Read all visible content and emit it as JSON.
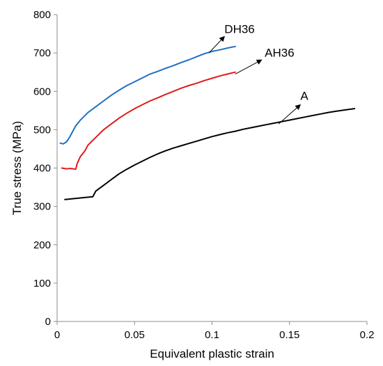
{
  "chart_data": {
    "type": "line",
    "title": "",
    "xlabel": "Equivalent plastic strain",
    "ylabel": "True stress (MPa)",
    "xlim": [
      0,
      0.2
    ],
    "ylim": [
      0,
      800
    ],
    "x_ticks": [
      0,
      0.05,
      0.1,
      0.15,
      0.2
    ],
    "x_tick_labels": [
      "0",
      "0.05",
      "0.1",
      "0.15",
      "0.2"
    ],
    "y_ticks": [
      0,
      100,
      200,
      300,
      400,
      500,
      600,
      700,
      800
    ],
    "y_tick_labels": [
      "0",
      "100",
      "200",
      "300",
      "400",
      "500",
      "600",
      "700",
      "800"
    ],
    "grid": false,
    "legend": "none",
    "series": [
      {
        "name": "DH36",
        "color": "#1f6fbf",
        "points": [
          [
            0.002,
            465
          ],
          [
            0.004,
            463
          ],
          [
            0.006,
            468
          ],
          [
            0.008,
            480
          ],
          [
            0.01,
            495
          ],
          [
            0.012,
            510
          ],
          [
            0.015,
            525
          ],
          [
            0.02,
            545
          ],
          [
            0.025,
            560
          ],
          [
            0.03,
            575
          ],
          [
            0.035,
            590
          ],
          [
            0.04,
            603
          ],
          [
            0.045,
            615
          ],
          [
            0.05,
            625
          ],
          [
            0.055,
            635
          ],
          [
            0.06,
            645
          ],
          [
            0.065,
            652
          ],
          [
            0.07,
            660
          ],
          [
            0.075,
            667
          ],
          [
            0.08,
            675
          ],
          [
            0.085,
            682
          ],
          [
            0.09,
            690
          ],
          [
            0.095,
            698
          ],
          [
            0.1,
            704
          ],
          [
            0.105,
            708
          ],
          [
            0.11,
            713
          ],
          [
            0.115,
            717
          ]
        ]
      },
      {
        "name": "AH36",
        "color": "#e01919",
        "points": [
          [
            0.003,
            400
          ],
          [
            0.006,
            398
          ],
          [
            0.009,
            399
          ],
          [
            0.012,
            397
          ],
          [
            0.013,
            412
          ],
          [
            0.015,
            430
          ],
          [
            0.018,
            445
          ],
          [
            0.02,
            460
          ],
          [
            0.025,
            480
          ],
          [
            0.03,
            500
          ],
          [
            0.035,
            515
          ],
          [
            0.04,
            530
          ],
          [
            0.045,
            543
          ],
          [
            0.05,
            555
          ],
          [
            0.055,
            565
          ],
          [
            0.06,
            575
          ],
          [
            0.065,
            583
          ],
          [
            0.07,
            592
          ],
          [
            0.075,
            600
          ],
          [
            0.08,
            608
          ],
          [
            0.085,
            615
          ],
          [
            0.09,
            621
          ],
          [
            0.095,
            628
          ],
          [
            0.1,
            634
          ],
          [
            0.105,
            640
          ],
          [
            0.11,
            645
          ],
          [
            0.115,
            650
          ]
        ]
      },
      {
        "name": "A",
        "color": "#000000",
        "points": [
          [
            0.005,
            318
          ],
          [
            0.01,
            320
          ],
          [
            0.015,
            322
          ],
          [
            0.02,
            324
          ],
          [
            0.023,
            325
          ],
          [
            0.025,
            340
          ],
          [
            0.03,
            355
          ],
          [
            0.035,
            370
          ],
          [
            0.04,
            385
          ],
          [
            0.045,
            397
          ],
          [
            0.05,
            408
          ],
          [
            0.055,
            418
          ],
          [
            0.06,
            428
          ],
          [
            0.065,
            437
          ],
          [
            0.07,
            445
          ],
          [
            0.075,
            452
          ],
          [
            0.08,
            458
          ],
          [
            0.085,
            464
          ],
          [
            0.09,
            470
          ],
          [
            0.095,
            476
          ],
          [
            0.1,
            482
          ],
          [
            0.105,
            487
          ],
          [
            0.11,
            492
          ],
          [
            0.115,
            496
          ],
          [
            0.12,
            501
          ],
          [
            0.125,
            505
          ],
          [
            0.13,
            509
          ],
          [
            0.135,
            513
          ],
          [
            0.14,
            517
          ],
          [
            0.145,
            521
          ],
          [
            0.15,
            525
          ],
          [
            0.155,
            529
          ],
          [
            0.16,
            533
          ],
          [
            0.165,
            537
          ],
          [
            0.17,
            541
          ],
          [
            0.175,
            545
          ],
          [
            0.18,
            548
          ],
          [
            0.185,
            551
          ],
          [
            0.192,
            555
          ]
        ]
      }
    ],
    "annotations": [
      {
        "text": "DH36",
        "arrow_from": [
          0.098,
          700
        ],
        "arrow_to": [
          0.108,
          743
        ],
        "label_at": [
          0.108,
          752
        ]
      },
      {
        "text": "AH36",
        "arrow_from": [
          0.115,
          645
        ],
        "arrow_to": [
          0.132,
          682
        ],
        "label_at": [
          0.134,
          690
        ]
      },
      {
        "text": "A",
        "arrow_from": [
          0.143,
          515
        ],
        "arrow_to": [
          0.157,
          565
        ],
        "label_at": [
          0.157,
          578
        ]
      }
    ]
  }
}
